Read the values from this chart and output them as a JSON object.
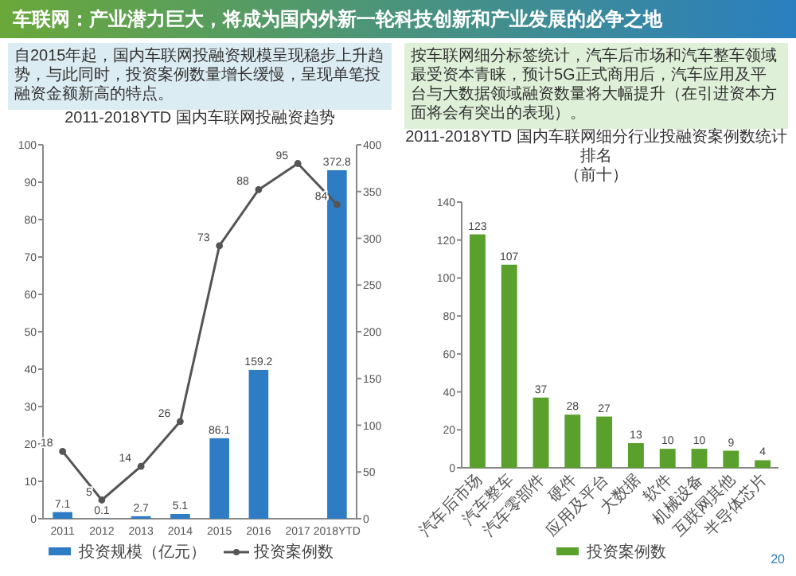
{
  "chart_data": [
    {
      "type": "bar",
      "title": "2011-2018YTD 国内车联网投融资趋势",
      "subtitle": "自2015年起，国内车联网投融资规模呈现稳步上升趋势，与此同时，投资案例数量增长缓慢，呈现单笔投融资金额新高的特点。",
      "annotations": [
        "车联网：产业潜力巨大，将成为国内外新一轮科技创新和产业发展的必争之地"
      ],
      "categories": [
        "2011",
        "2012",
        "2013",
        "2014",
        "2015",
        "2016",
        "2017",
        "2018YTD"
      ],
      "series": [
        {
          "name": "投资规模（亿元）",
          "axis": "y2",
          "color": "#2e7cc4",
          "values": [
            7.1,
            0.1,
            2.7,
            5.1,
            86.1,
            159.2,
            null,
            372.8
          ]
        },
        {
          "name": "投资案例数",
          "type": "line",
          "color": "#555555",
          "marker": "circle",
          "values": [
            18,
            5,
            14,
            26,
            73,
            88,
            95,
            84
          ]
        }
      ],
      "data_labels": true,
      "ylim": [
        0,
        100
      ],
      "yticks": [
        0,
        10,
        20,
        30,
        40,
        50,
        60,
        70,
        80,
        90,
        100
      ],
      "y2lim": [
        0,
        400
      ],
      "y2ticks": [
        0,
        50,
        100,
        150,
        200,
        250,
        300,
        350,
        400
      ],
      "legend": "bottom"
    },
    {
      "type": "bar",
      "title": "2011-2018YTD 国内车联网细分行业投融资案例数统计排名",
      "subtitle": "按车联网细分标签统计，汽车后市场和汽车整车领域最受资本青睐，预计5G正式商用后，汽车应用及平台与大数据领域融资数量将大幅提升（在引进资本方面将会有突出的表现）。",
      "annotations": [
        "（前十）",
        "20"
      ],
      "categories": [
        "汽车后市场",
        "汽车整车",
        "汽车零部件",
        "硬件",
        "应用及平台",
        "大数据",
        "软件",
        "机械设备",
        "互联网其他",
        "半导体芯片"
      ],
      "series": [
        {
          "name": "投资案例数",
          "color": "#5aa02c",
          "values": [
            123,
            107,
            37,
            28,
            27,
            13,
            10,
            10,
            9,
            4
          ]
        }
      ],
      "data_labels": true,
      "ylim": [
        0,
        140
      ],
      "yticks": [
        0,
        20,
        40,
        60,
        80,
        100,
        120,
        140
      ],
      "legend": "bottom"
    }
  ]
}
